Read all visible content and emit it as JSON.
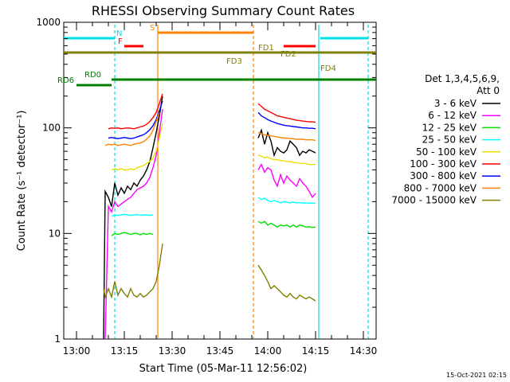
{
  "chart_data": {
    "type": "line",
    "title": "RHESSI Observing Summary Count Rates",
    "xlabel": "Start Time (05-Mar-11 12:56:02)",
    "ylabel": "Count Rate (s⁻¹ detector⁻¹)",
    "yscale": "log",
    "ylim": [
      1,
      1000
    ],
    "xlim_minutes_from_1256": [
      0,
      98
    ],
    "x_tick_labels": [
      "13:00",
      "13:15",
      "13:30",
      "13:45",
      "14:00",
      "14:15",
      "14:30"
    ],
    "y_tick_labels": [
      "1",
      "10",
      "100",
      "1000"
    ],
    "footer_date": "15-Oct-2021 02:15",
    "legend": {
      "header1": "Det 1,3,4,5,6,9,",
      "header2": "Att 0",
      "placement": "right"
    },
    "flags": [
      {
        "label": "N",
        "color": "#00e0e0"
      },
      {
        "label": "S",
        "color": "#ff8000"
      },
      {
        "label": "F",
        "color": "#ff0000"
      },
      {
        "label": "FD1",
        "color": "#808000"
      },
      {
        "label": "FD2",
        "color": "#808000"
      },
      {
        "label": "FD3",
        "color": "#808000"
      },
      {
        "label": "FD4",
        "color": "#808000"
      },
      {
        "label": "RD0",
        "color": "#008000"
      },
      {
        "label": "RD6",
        "color": "#008000"
      }
    ],
    "series": [
      {
        "name": "3 - 6 keV",
        "color": "#000000",
        "segments": [
          {
            "x": [
              12.5,
              13,
              14,
              15,
              16,
              17,
              18,
              19,
              20,
              21,
              22,
              23,
              24,
              25,
              26,
              27,
              28,
              29,
              30,
              31
            ],
            "y": [
              1,
              25,
              22,
              18,
              30,
              23,
              27,
              24,
              28,
              26,
              30,
              28,
              32,
              35,
              40,
              48,
              65,
              90,
              130,
              200
            ]
          },
          {
            "x": [
              61,
              62,
              63,
              64,
              65,
              66,
              67,
              68,
              69,
              70,
              71,
              72,
              73,
              74,
              75,
              76,
              77,
              78,
              79
            ],
            "y": [
              80,
              95,
              70,
              90,
              75,
              55,
              65,
              60,
              58,
              62,
              75,
              70,
              65,
              55,
              60,
              58,
              62,
              60,
              58
            ]
          }
        ]
      },
      {
        "name": "6 - 12 keV",
        "color": "#ff00ff",
        "segments": [
          {
            "x": [
              13,
              14,
              15,
              16,
              17,
              18,
              19,
              20,
              21,
              22,
              23,
              24,
              25,
              26,
              27,
              28,
              29,
              30,
              31
            ],
            "y": [
              1,
              18,
              16,
              20,
              18,
              19,
              20,
              21,
              22,
              24,
              26,
              27,
              28,
              30,
              34,
              42,
              55,
              90,
              150
            ]
          },
          {
            "x": [
              61,
              62,
              63,
              64,
              65,
              66,
              67,
              68,
              69,
              70,
              71,
              72,
              73,
              74,
              75,
              76,
              77,
              78,
              79
            ],
            "y": [
              40,
              45,
              38,
              42,
              40,
              32,
              28,
              36,
              30,
              35,
              32,
              30,
              28,
              33,
              30,
              28,
              25,
              22,
              24
            ]
          }
        ]
      },
      {
        "name": "12 - 25 keV",
        "color": "#00e000",
        "segments": [
          {
            "x": [
              15,
              16,
              17,
              18,
              19,
              20,
              21,
              22,
              23,
              24,
              25,
              26,
              27,
              28
            ],
            "y": [
              9.5,
              10,
              9.8,
              10,
              10.2,
              10,
              9.8,
              10,
              10,
              9.7,
              10,
              9.8,
              10,
              9.8
            ]
          },
          {
            "x": [
              61,
              62,
              63,
              64,
              65,
              66,
              67,
              68,
              69,
              70,
              71,
              72,
              73,
              74,
              75,
              76,
              77,
              78,
              79
            ],
            "y": [
              13,
              12.5,
              13,
              12,
              12.5,
              12,
              11.5,
              12,
              11.8,
              12,
              11.5,
              12,
              11.5,
              12,
              11.8,
              11.5,
              11.6,
              11.4,
              11.5
            ]
          }
        ]
      },
      {
        "name": "25 - 50 keV",
        "color": "#00ffff",
        "segments": [
          {
            "x": [
              15,
              16,
              17,
              18,
              19,
              20,
              21,
              22,
              23,
              24,
              25,
              26,
              27,
              28
            ],
            "y": [
              14.5,
              15,
              14.8,
              15,
              15.2,
              15,
              14.8,
              15,
              15.1,
              14.9,
              15,
              15,
              14.8,
              15
            ]
          },
          {
            "x": [
              61,
              62,
              63,
              64,
              65,
              66,
              67,
              68,
              69,
              70,
              71,
              72,
              73,
              74,
              75,
              76,
              77,
              78,
              79
            ],
            "y": [
              22,
              21,
              21.5,
              20.5,
              20,
              20.5,
              20,
              19.5,
              20,
              19.8,
              19.5,
              19.8,
              19.5,
              19.6,
              19.4,
              19.5,
              19.3,
              19.4,
              19.3
            ]
          }
        ]
      },
      {
        "name": "50 - 100 keV",
        "color": "#e8e000",
        "segments": [
          {
            "x": [
              15,
              16,
              17,
              18,
              19,
              20,
              21,
              22,
              23,
              24,
              25,
              26,
              27,
              28,
              29,
              30,
              31
            ],
            "y": [
              40,
              41,
              40,
              41,
              40,
              40,
              41,
              40,
              42,
              43,
              44,
              46,
              48,
              52,
              60,
              80,
              110
            ]
          },
          {
            "x": [
              61,
              62,
              63,
              64,
              65,
              66,
              67,
              68,
              69,
              70,
              71,
              72,
              73,
              74,
              75,
              76,
              77,
              78,
              79
            ],
            "y": [
              55,
              54,
              52,
              53,
              51,
              50,
              50,
              49,
              49,
              48,
              48,
              47,
              47,
              46,
              46,
              46,
              45,
              45,
              45
            ]
          }
        ]
      },
      {
        "name": "100 - 300 keV",
        "color": "#ff0000",
        "segments": [
          {
            "x": [
              14,
              15,
              16,
              17,
              18,
              19,
              20,
              21,
              22,
              23,
              24,
              25,
              26,
              27,
              28,
              29,
              30,
              31
            ],
            "y": [
              98,
              100,
              99,
              100,
              98,
              99,
              100,
              99,
              98,
              100,
              102,
              104,
              108,
              115,
              125,
              140,
              170,
              210
            ]
          },
          {
            "x": [
              61,
              62,
              63,
              64,
              65,
              66,
              67,
              68,
              69,
              70,
              71,
              72,
              73,
              74,
              75,
              76,
              77,
              78,
              79
            ],
            "y": [
              170,
              160,
              150,
              145,
              140,
              135,
              130,
              128,
              126,
              124,
              122,
              120,
              118,
              117,
              116,
              115,
              114,
              114,
              113
            ]
          }
        ]
      },
      {
        "name": "300 - 800 keV",
        "color": "#0000ff",
        "segments": [
          {
            "x": [
              14,
              15,
              16,
              17,
              18,
              19,
              20,
              21,
              22,
              23,
              24,
              25,
              26,
              27,
              28,
              29,
              30,
              31
            ],
            "y": [
              80,
              81,
              80,
              79,
              80,
              81,
              80,
              79,
              80,
              82,
              84,
              86,
              90,
              96,
              105,
              120,
              145,
              180
            ]
          },
          {
            "x": [
              61,
              62,
              63,
              64,
              65,
              66,
              67,
              68,
              69,
              70,
              71,
              72,
              73,
              74,
              75,
              76,
              77,
              78,
              79
            ],
            "y": [
              140,
              130,
              125,
              120,
              116,
              113,
              110,
              108,
              106,
              105,
              104,
              103,
              102,
              101,
              100,
              100,
              99,
              99,
              98
            ]
          }
        ]
      },
      {
        "name": "800 - 7000 keV",
        "color": "#ff8000",
        "segments": [
          {
            "x": [
              13,
              14,
              15,
              16,
              17,
              18,
              19,
              20,
              21,
              22,
              23,
              24,
              25,
              26,
              27,
              28,
              29,
              30
            ],
            "y": [
              68,
              70,
              69,
              70,
              68,
              69,
              70,
              69,
              68,
              70,
              71,
              72,
              74,
              78,
              84,
              95,
              115,
              140
            ]
          },
          {
            "x": [
              61,
              62,
              63,
              64,
              65,
              66,
              67,
              68,
              69,
              70,
              71,
              72,
              73,
              74,
              75,
              76,
              77,
              78,
              79
            ],
            "y": [
              90,
              88,
              86,
              85,
              84,
              83,
              82,
              81,
              80,
              80,
              79,
              79,
              78,
              78,
              78,
              77,
              77,
              77,
              76
            ]
          }
        ]
      },
      {
        "name": "7000 - 15000 keV",
        "color": "#808000",
        "segments": [
          {
            "x": [
              12.5,
              13,
              14,
              15,
              16,
              17,
              18,
              19,
              20,
              21,
              22,
              23,
              24,
              25,
              26,
              27,
              28,
              29,
              30,
              31
            ],
            "y": [
              3,
              2.5,
              3,
              2.5,
              3.5,
              2.6,
              3,
              2.7,
              2.5,
              3,
              2.6,
              2.5,
              2.7,
              2.5,
              2.6,
              2.8,
              3,
              3.5,
              5,
              8
            ]
          },
          {
            "x": [
              61,
              62,
              63,
              64,
              65,
              66,
              67,
              68,
              69,
              70,
              71,
              72,
              73,
              74,
              75,
              76,
              77,
              78,
              79
            ],
            "y": [
              5,
              4.5,
              4,
              3.5,
              3,
              3.2,
              3,
              2.8,
              2.6,
              2.5,
              2.7,
              2.5,
              2.4,
              2.6,
              2.5,
              2.4,
              2.5,
              2.4,
              2.3
            ]
          }
        ]
      }
    ]
  }
}
